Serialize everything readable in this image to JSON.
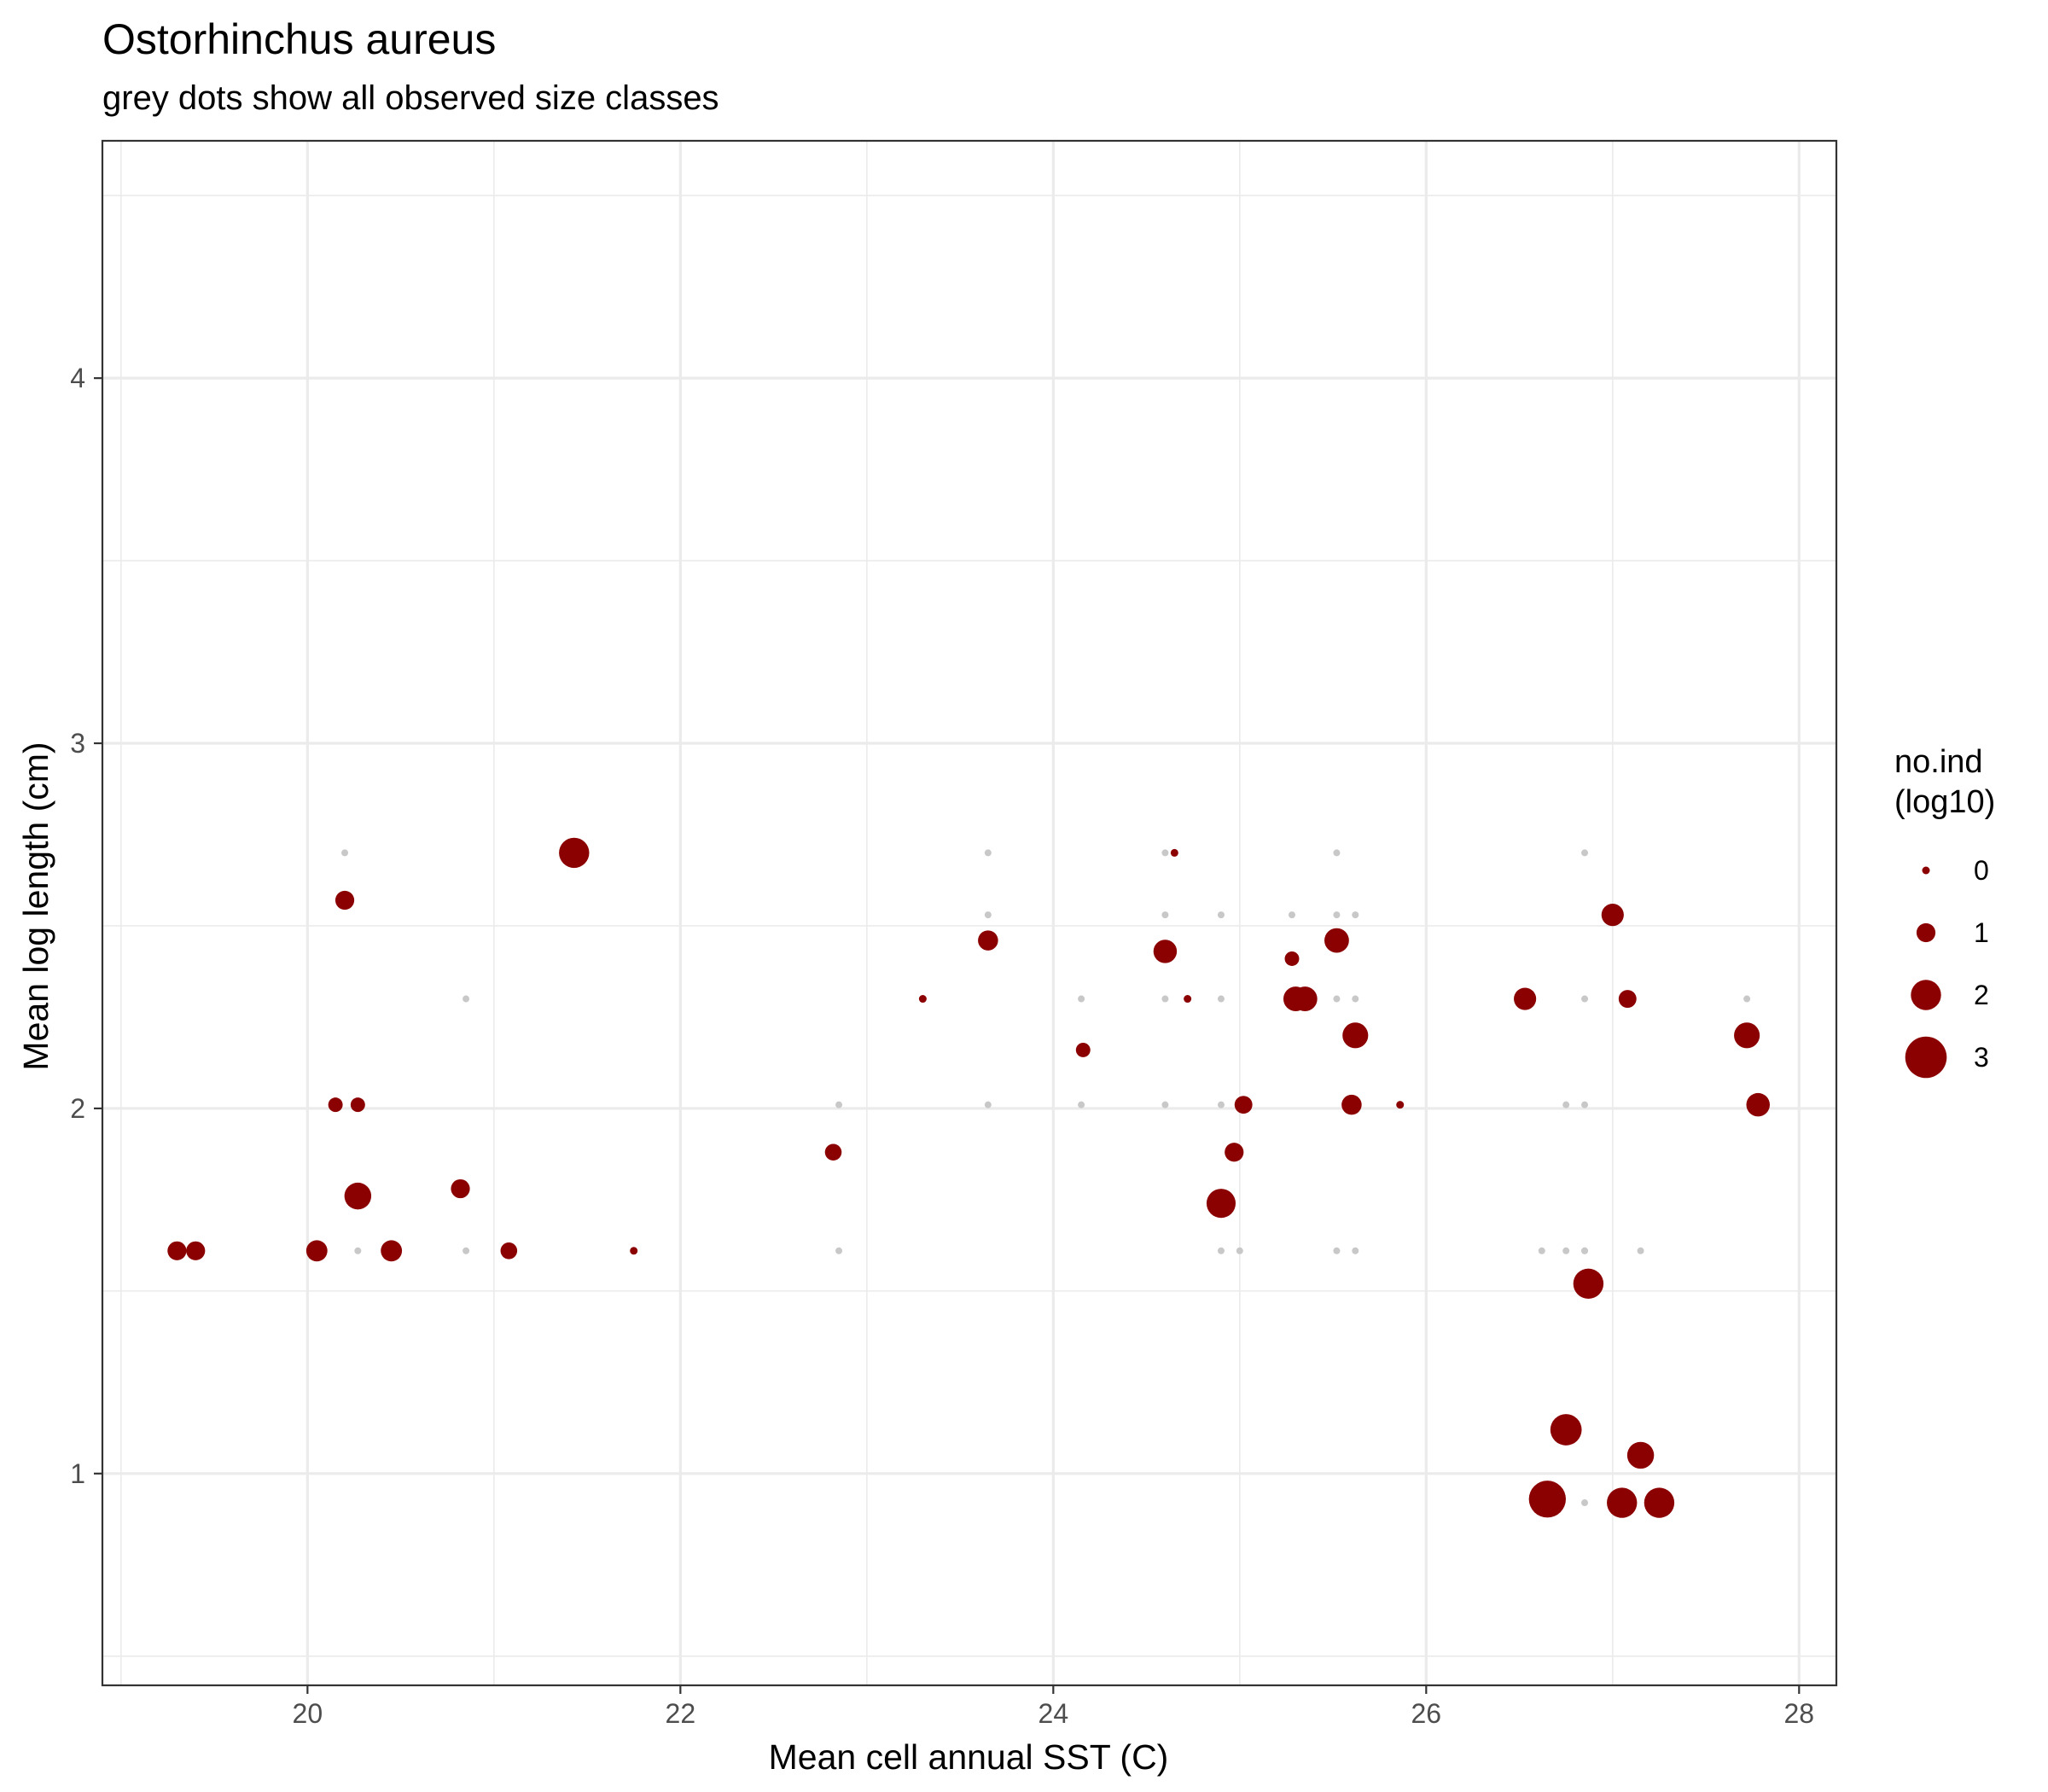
{
  "chart_data": {
    "type": "scatter",
    "title": "Ostorhinchus aureus",
    "subtitle": "grey dots show all observed size classes",
    "xlabel": "Mean cell annual SST (C)",
    "ylabel": "Mean log length (cm)",
    "xlim": [
      18.9,
      28.2
    ],
    "ylim": [
      0.42,
      4.65
    ],
    "x_ticks": [
      20,
      22,
      24,
      26,
      28
    ],
    "y_ticks": [
      1,
      2,
      3,
      4
    ],
    "grid": true,
    "legend": {
      "title_lines": [
        "no.ind",
        "(log10)"
      ],
      "placement": "right",
      "entries": [
        {
          "label": "0",
          "value": 0
        },
        {
          "label": "1",
          "value": 1
        },
        {
          "label": "2",
          "value": 2
        },
        {
          "label": "3",
          "value": 3
        }
      ]
    },
    "colors": {
      "mean_points": "#8b0000",
      "grey_dots": "#c8c8c8",
      "grid": "#ebebeb",
      "panel_border": "#333333"
    },
    "series": [
      {
        "x": [
          20.2,
          21.43,
          20.27,
          20.15,
          19.3,
          19.4,
          20.05,
          20.45,
          20.82,
          21.08,
          21.75,
          22.82,
          23.3,
          23.65,
          24.16,
          24.6,
          24.65,
          24.72,
          24.9,
          24.97,
          25.02,
          25.28,
          25.3,
          25.35,
          25.52,
          25.6,
          25.62,
          25.86,
          26.53,
          26.65,
          26.75,
          26.87,
          27.0,
          27.08,
          27.05,
          27.15,
          27.25,
          27.72,
          27.78,
          20.27
        ],
        "y": [
          2.57,
          2.7,
          1.76,
          2.01,
          1.61,
          1.61,
          1.61,
          1.61,
          1.78,
          1.61,
          1.61,
          1.88,
          2.3,
          2.46,
          2.16,
          2.43,
          2.7,
          2.3,
          1.74,
          1.88,
          2.01,
          2.41,
          2.3,
          2.3,
          2.46,
          2.01,
          2.2,
          2.01,
          2.3,
          0.93,
          1.12,
          1.52,
          2.53,
          2.3,
          0.92,
          1.05,
          0.92,
          2.2,
          2.01,
          2.01
        ],
        "size": [
          1,
          2,
          1.7,
          0.6,
          1,
          1,
          1.2,
          1.2,
          1,
          0.8,
          0,
          0.8,
          0,
          1.1,
          0.6,
          1.4,
          0,
          0,
          1.9,
          1,
          0.9,
          0.6,
          1.5,
          1.5,
          1.5,
          1.1,
          1.6,
          0,
          1.3,
          2.6,
          2.1,
          2,
          1.3,
          0.9,
          2,
          1.7,
          2,
          1.6,
          1.4,
          0.6
        ]
      },
      {
        "x": [
          20.2,
          20.85,
          20.27,
          20.27,
          20.85,
          23.65,
          23.65,
          23.65,
          22.85,
          22.85,
          24.15,
          24.15,
          24.6,
          24.6,
          24.6,
          24.6,
          24.9,
          24.9,
          24.9,
          24.9,
          25.0,
          25.28,
          25.52,
          25.52,
          25.52,
          25.52,
          25.62,
          25.62,
          25.62,
          25.62,
          26.62,
          26.75,
          26.85,
          26.85,
          26.85,
          26.85,
          27.15,
          27.72,
          26.75,
          26.85,
          26.85
        ],
        "y": [
          2.7,
          2.3,
          2.01,
          1.61,
          1.61,
          2.7,
          2.53,
          2.01,
          2.01,
          1.61,
          2.3,
          2.01,
          2.7,
          2.53,
          2.3,
          2.01,
          2.53,
          2.3,
          2.01,
          1.61,
          1.61,
          2.53,
          2.7,
          2.53,
          2.3,
          1.61,
          2.53,
          2.3,
          2.01,
          1.61,
          1.61,
          1.61,
          2.7,
          2.3,
          2.01,
          1.61,
          1.61,
          2.3,
          2.01,
          0.92,
          1.61
        ]
      }
    ]
  }
}
